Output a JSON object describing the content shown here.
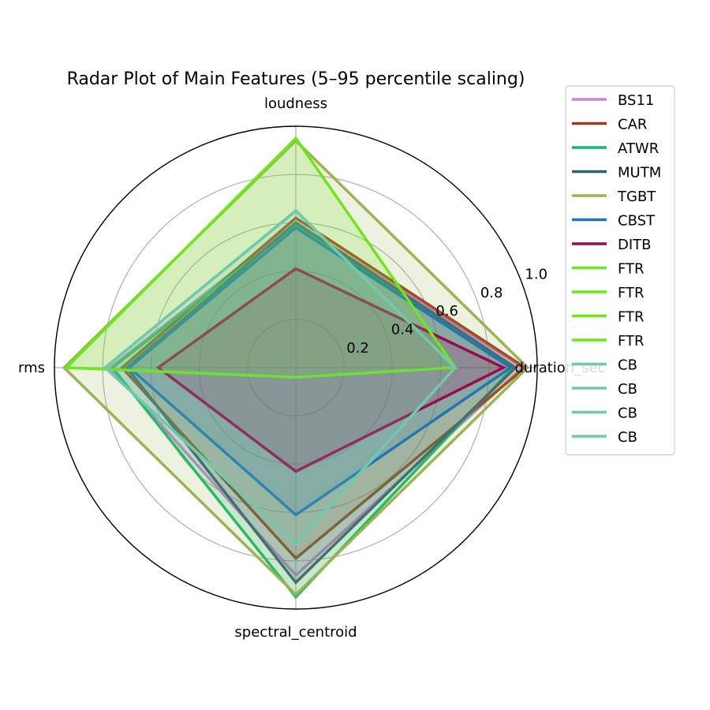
{
  "chart_data": {
    "type": "radar",
    "title": "Radar Plot of Main Features (5–95 percentile scaling)",
    "axes": [
      "duration_sec",
      "loudness",
      "rms",
      "spectral_centroid"
    ],
    "rlim": [
      0,
      1.0
    ],
    "rticks": [
      0.2,
      0.4,
      0.6,
      0.8,
      1.0
    ],
    "rtick_labels": [
      "0.2",
      "0.4",
      "0.6",
      "0.8",
      "1.0"
    ],
    "grid": true,
    "legend_position": "upper-right outside",
    "series": [
      {
        "name": "BS11",
        "color": "#d07fe6",
        "fill": true,
        "values": [
          0.94,
          0.6,
          0.77,
          0.86
        ]
      },
      {
        "name": "CAR",
        "color": "#a0381a",
        "fill": true,
        "values": [
          0.95,
          0.62,
          0.72,
          0.79
        ]
      },
      {
        "name": "ATWR",
        "color": "#0dbd6c",
        "fill": true,
        "values": [
          0.9,
          0.59,
          0.76,
          0.95
        ]
      },
      {
        "name": "MUTM",
        "color": "#2f6373",
        "fill": true,
        "values": [
          0.91,
          0.6,
          0.7,
          0.89
        ]
      },
      {
        "name": "TGBT",
        "color": "#9bb452",
        "fill": true,
        "values": [
          0.96,
          0.94,
          0.96,
          0.94
        ]
      },
      {
        "name": "CBST",
        "color": "#1f77b4",
        "fill": true,
        "values": [
          0.89,
          0.58,
          0.69,
          0.61
        ]
      },
      {
        "name": "DITB",
        "color": "#9a0a4c",
        "fill": true,
        "values": [
          0.86,
          0.41,
          0.57,
          0.43
        ]
      },
      {
        "name": "FTR",
        "color": "#6ee61a",
        "fill": true,
        "values": [
          0.66,
          0.95,
          0.95,
          0.04
        ]
      },
      {
        "name": "FTR",
        "color": "#6ee61a",
        "fill": false,
        "values": [
          0.0,
          0.0,
          0.0,
          0.0
        ]
      },
      {
        "name": "FTR",
        "color": "#6ee61a",
        "fill": false,
        "values": [
          0.0,
          0.0,
          0.0,
          0.0
        ]
      },
      {
        "name": "FTR",
        "color": "#6ee61a",
        "fill": false,
        "values": [
          0.0,
          0.0,
          0.0,
          0.0
        ]
      },
      {
        "name": "CB",
        "color": "#6fc9aa",
        "fill": true,
        "values": [
          0.66,
          0.65,
          0.79,
          0.73
        ]
      },
      {
        "name": "CB",
        "color": "#6fc9aa",
        "fill": false,
        "values": [
          0.66,
          0.65,
          0.79,
          0.73
        ]
      },
      {
        "name": "CB",
        "color": "#6fc9aa",
        "fill": false,
        "values": [
          0.0,
          0.0,
          0.0,
          0.0
        ]
      },
      {
        "name": "CB",
        "color": "#6fc9aa",
        "fill": false,
        "values": [
          0.0,
          0.0,
          0.0,
          0.0
        ]
      }
    ]
  }
}
